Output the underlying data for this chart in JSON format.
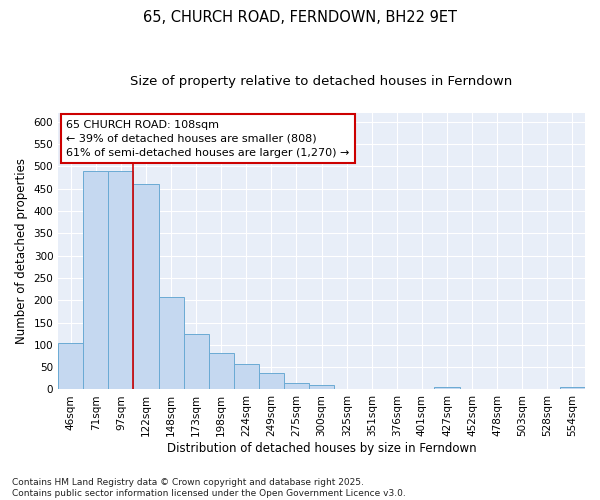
{
  "title": "65, CHURCH ROAD, FERNDOWN, BH22 9ET",
  "subtitle": "Size of property relative to detached houses in Ferndown",
  "xlabel": "Distribution of detached houses by size in Ferndown",
  "ylabel": "Number of detached properties",
  "categories": [
    "46sqm",
    "71sqm",
    "97sqm",
    "122sqm",
    "148sqm",
    "173sqm",
    "198sqm",
    "224sqm",
    "249sqm",
    "275sqm",
    "300sqm",
    "325sqm",
    "351sqm",
    "376sqm",
    "401sqm",
    "427sqm",
    "452sqm",
    "478sqm",
    "503sqm",
    "528sqm",
    "554sqm"
  ],
  "values": [
    105,
    490,
    490,
    460,
    207,
    125,
    82,
    57,
    37,
    15,
    10,
    0,
    0,
    0,
    0,
    5,
    0,
    0,
    0,
    0,
    5
  ],
  "bar_color": "#c5d8f0",
  "bar_edge_color": "#6aaad4",
  "bar_edge_width": 0.7,
  "background_color": "#e8eef8",
  "grid_color": "#ffffff",
  "vline_x": 2.5,
  "vline_color": "#cc0000",
  "annotation_text": "65 CHURCH ROAD: 108sqm\n← 39% of detached houses are smaller (808)\n61% of semi-detached houses are larger (1,270) →",
  "annotation_box_color": "#cc0000",
  "footnote": "Contains HM Land Registry data © Crown copyright and database right 2025.\nContains public sector information licensed under the Open Government Licence v3.0.",
  "ylim": [
    0,
    620
  ],
  "yticks": [
    0,
    50,
    100,
    150,
    200,
    250,
    300,
    350,
    400,
    450,
    500,
    550,
    600
  ],
  "title_fontsize": 10.5,
  "subtitle_fontsize": 9.5,
  "axis_label_fontsize": 8.5,
  "tick_fontsize": 7.5,
  "annotation_fontsize": 8,
  "footnote_fontsize": 6.5
}
